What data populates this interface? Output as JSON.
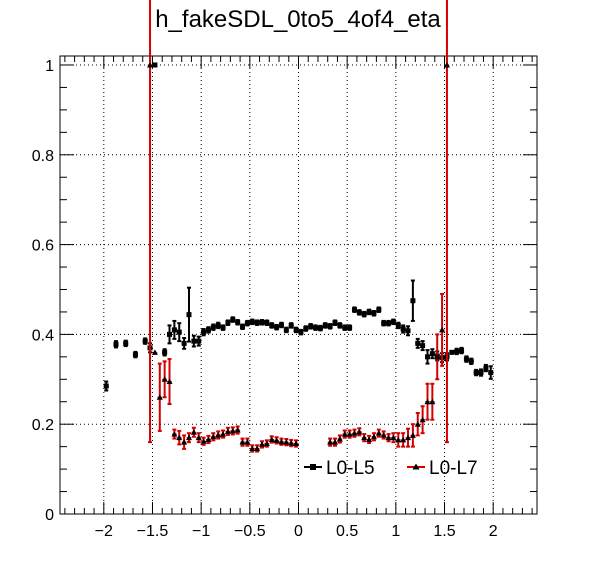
{
  "chart_data": {
    "type": "scatter",
    "title": "h_fakeSDL_0to5_4of4_eta",
    "xlabel": "",
    "ylabel": "",
    "xlim": [
      -2.45,
      2.45
    ],
    "ylim": [
      0,
      1.02
    ],
    "x_ticks": [
      -2,
      -1.5,
      -1,
      -0.5,
      0,
      0.5,
      1,
      1.5,
      2
    ],
    "x_tick_labels": [
      "−2",
      "−1.5",
      "−1",
      "−0.5",
      "0",
      "0.5",
      "1",
      "1.5",
      "2"
    ],
    "y_ticks": [
      0,
      0.2,
      0.4,
      0.6,
      0.8,
      1
    ],
    "y_tick_labels": [
      "0",
      "0.2",
      "0.4",
      "0.6",
      "0.8",
      "1"
    ],
    "grid": true,
    "legend_position": "bottom-right",
    "series": [
      {
        "name": "L0-L5",
        "color": "#000000",
        "marker": "square",
        "x": [
          -1.975,
          -1.875,
          -1.775,
          -1.675,
          -1.575,
          -1.525,
          -1.475,
          -1.375,
          -1.325,
          -1.275,
          -1.225,
          -1.175,
          -1.125,
          -1.075,
          -1.025,
          -0.975,
          -0.925,
          -0.875,
          -0.825,
          -0.775,
          -0.725,
          -0.675,
          -0.625,
          -0.575,
          -0.525,
          -0.475,
          -0.425,
          -0.375,
          -0.325,
          -0.275,
          -0.225,
          -0.175,
          -0.125,
          -0.075,
          -0.025,
          0.025,
          0.075,
          0.125,
          0.175,
          0.225,
          0.275,
          0.325,
          0.375,
          0.425,
          0.475,
          0.525,
          0.575,
          0.625,
          0.675,
          0.725,
          0.775,
          0.825,
          0.875,
          0.925,
          0.975,
          1.025,
          1.075,
          1.125,
          1.175,
          1.225,
          1.275,
          1.325,
          1.375,
          1.425,
          1.475,
          1.525,
          1.575,
          1.625,
          1.675,
          1.725,
          1.775,
          1.825,
          1.875,
          1.925,
          1.975
        ],
        "y": [
          0.285,
          0.378,
          0.38,
          0.355,
          0.385,
          0.37,
          1.0,
          0.36,
          0.4,
          0.41,
          0.405,
          0.38,
          0.444,
          0.385,
          0.385,
          0.405,
          0.41,
          0.416,
          0.42,
          0.415,
          0.426,
          0.433,
          0.427,
          0.417,
          0.425,
          0.428,
          0.426,
          0.427,
          0.426,
          0.42,
          0.416,
          0.421,
          0.41,
          0.42,
          0.41,
          0.405,
          0.413,
          0.418,
          0.415,
          0.414,
          0.42,
          0.418,
          0.426,
          0.42,
          0.415,
          0.415,
          0.455,
          0.449,
          0.445,
          0.45,
          0.447,
          0.455,
          0.425,
          0.425,
          0.428,
          0.42,
          0.412,
          0.408,
          0.475,
          0.38,
          0.375,
          0.35,
          0.357,
          0.352,
          0.348,
          0.35,
          0.36,
          0.362,
          0.364,
          0.345,
          0.34,
          0.315,
          0.315,
          0.325,
          0.315
        ],
        "yerr": [
          0.01,
          0.007,
          0.006,
          0.006,
          0.006,
          0.01,
          0.0,
          0.007,
          0.02,
          0.02,
          0.02,
          0.012,
          0.06,
          0.012,
          0.01,
          0.007,
          0.006,
          0.006,
          0.006,
          0.005,
          0.005,
          0.005,
          0.005,
          0.005,
          0.005,
          0.005,
          0.005,
          0.005,
          0.005,
          0.005,
          0.005,
          0.005,
          0.005,
          0.005,
          0.005,
          0.005,
          0.005,
          0.005,
          0.005,
          0.005,
          0.005,
          0.005,
          0.005,
          0.005,
          0.005,
          0.005,
          0.005,
          0.005,
          0.005,
          0.005,
          0.005,
          0.005,
          0.005,
          0.005,
          0.005,
          0.006,
          0.008,
          0.01,
          0.045,
          0.01,
          0.01,
          0.015,
          0.01,
          0.01,
          0.01,
          0.008,
          0.0,
          0.006,
          0.006,
          0.006,
          0.006,
          0.006,
          0.007,
          0.007,
          0.014
        ]
      },
      {
        "name": "L0-L7",
        "color": "#d40000",
        "marker": "triangle",
        "x": [
          -1.525,
          -1.475,
          -1.425,
          -1.375,
          -1.325,
          -1.275,
          -1.225,
          -1.175,
          -1.125,
          -1.075,
          -1.025,
          -0.975,
          -0.925,
          -0.875,
          -0.825,
          -0.775,
          -0.725,
          -0.675,
          -0.625,
          -0.575,
          -0.525,
          -0.475,
          -0.425,
          -0.375,
          -0.325,
          -0.275,
          -0.225,
          -0.175,
          -0.125,
          -0.075,
          -0.025,
          0.325,
          0.375,
          0.425,
          0.475,
          0.525,
          0.575,
          0.625,
          0.675,
          0.725,
          0.775,
          0.825,
          0.875,
          0.925,
          0.975,
          1.025,
          1.075,
          1.125,
          1.175,
          1.225,
          1.275,
          1.325,
          1.375,
          1.425,
          1.475,
          1.525
        ],
        "y": [
          1.0,
          0.36,
          0.26,
          0.3,
          0.295,
          0.178,
          0.17,
          0.16,
          0.17,
          0.182,
          0.17,
          0.162,
          0.166,
          0.172,
          0.176,
          0.178,
          0.184,
          0.185,
          0.187,
          0.16,
          0.16,
          0.146,
          0.146,
          0.155,
          0.157,
          0.166,
          0.164,
          0.161,
          0.16,
          0.158,
          0.157,
          0.16,
          0.16,
          0.167,
          0.178,
          0.178,
          0.18,
          0.183,
          0.17,
          0.166,
          0.172,
          0.18,
          0.176,
          0.17,
          0.17,
          0.165,
          0.165,
          0.17,
          0.175,
          0.2,
          0.21,
          0.25,
          0.25,
          0.35,
          0.41,
          1.0
        ],
        "yerr": [
          0.84,
          0.0,
          0.075,
          0.04,
          0.05,
          0.01,
          0.015,
          0.015,
          0.01,
          0.01,
          0.01,
          0.008,
          0.008,
          0.008,
          0.008,
          0.008,
          0.008,
          0.008,
          0.008,
          0.008,
          0.008,
          0.007,
          0.007,
          0.007,
          0.007,
          0.007,
          0.007,
          0.007,
          0.007,
          0.007,
          0.007,
          0.008,
          0.008,
          0.008,
          0.008,
          0.008,
          0.008,
          0.008,
          0.008,
          0.008,
          0.008,
          0.008,
          0.008,
          0.008,
          0.01,
          0.015,
          0.015,
          0.02,
          0.025,
          0.025,
          0.03,
          0.04,
          0.04,
          0.05,
          0.08,
          0.84
        ]
      }
    ]
  }
}
